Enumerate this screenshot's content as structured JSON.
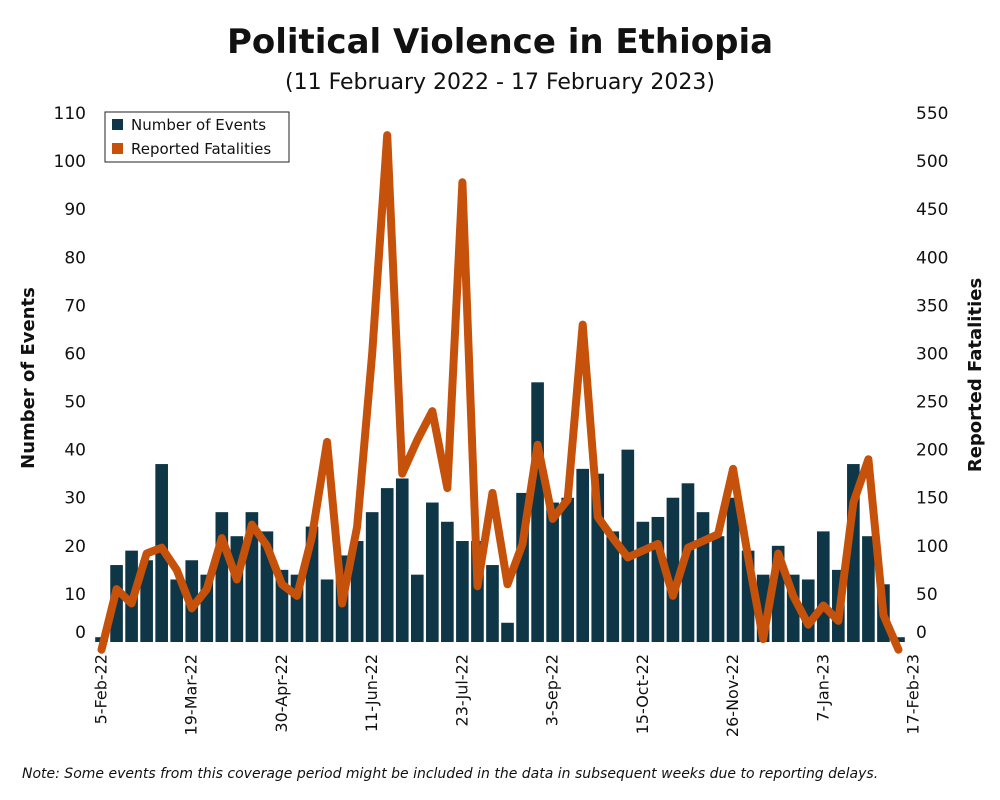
{
  "chart_data": {
    "type": "bar",
    "title": "Political Violence in Ethiopia",
    "subtitle": "(11 February 2022 - 17  February 2023)",
    "ylabel_left": "Number of Events",
    "ylabel_right": "Reported Fatalities",
    "ylim_left": [
      0,
      110
    ],
    "ylim_right": [
      0,
      550
    ],
    "yticks_left": [
      0,
      10,
      20,
      30,
      40,
      50,
      60,
      70,
      80,
      90,
      100,
      110
    ],
    "yticks_right": [
      0,
      50,
      100,
      150,
      200,
      250,
      300,
      350,
      400,
      450,
      500,
      550
    ],
    "xtick_labels": [
      "5-Feb-22",
      "19-Mar-22",
      "30-Apr-22",
      "11-Jun-22",
      "23-Jul-22",
      "3-Sep-22",
      "15-Oct-22",
      "26-Nov-22",
      "7-Jan-23",
      "17-Feb-23"
    ],
    "xtick_every": 6,
    "legend_position": "top-left",
    "grid": false,
    "colors": {
      "events": "#0e3647",
      "fatalities": "#c6510a"
    },
    "series": [
      {
        "name": "Number of Events",
        "type": "bar",
        "axis": "left",
        "values": [
          1,
          16,
          19,
          17,
          37,
          13,
          17,
          14,
          27,
          22,
          27,
          23,
          15,
          14,
          24,
          13,
          18,
          21,
          27,
          32,
          34,
          14,
          29,
          25,
          21,
          21,
          16,
          4,
          31,
          54,
          29,
          30,
          36,
          35,
          23,
          40,
          25,
          26,
          30,
          33,
          27,
          22,
          30,
          19,
          14,
          20,
          14,
          13,
          23,
          15,
          37,
          22,
          12,
          1
        ]
      },
      {
        "name": "Reported Fatalities",
        "type": "line",
        "axis": "right",
        "values": [
          -8,
          55,
          40,
          92,
          98,
          75,
          35,
          55,
          108,
          65,
          122,
          100,
          60,
          48,
          110,
          208,
          40,
          120,
          300,
          527,
          175,
          210,
          240,
          160,
          478,
          58,
          155,
          60,
          102,
          205,
          128,
          148,
          330,
          130,
          108,
          88,
          95,
          102,
          48,
          98,
          105,
          112,
          180,
          88,
          3,
          92,
          48,
          18,
          38,
          22,
          145,
          190,
          28,
          -8
        ]
      }
    ]
  },
  "note": "Note: Some events from this coverage period might be included in the data in subsequent weeks due to reporting delays."
}
